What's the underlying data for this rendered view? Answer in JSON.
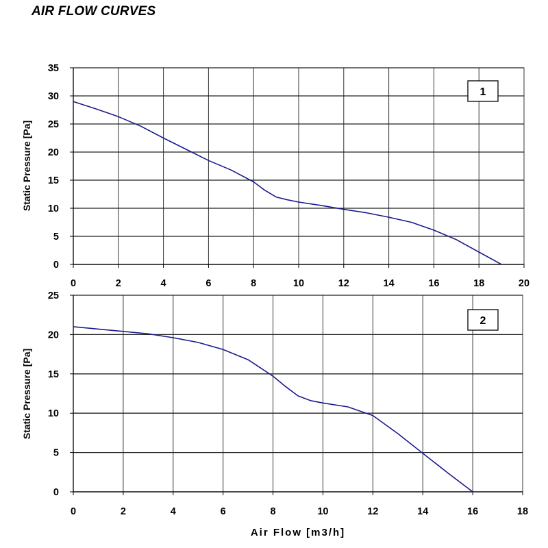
{
  "page": {
    "title": "AIR FLOW CURVES"
  },
  "colors": {
    "curve": "#1a1a8c",
    "grid": "#000000",
    "background": "#ffffff"
  },
  "chart_data": [
    {
      "type": "line",
      "badge": "1",
      "xlabel": "",
      "ylabel": "Static Pressure [Pa]",
      "xlim": [
        0,
        20
      ],
      "ylim": [
        0,
        35
      ],
      "x_ticks": [
        0,
        2,
        4,
        6,
        8,
        10,
        12,
        14,
        16,
        18,
        20
      ],
      "y_ticks": [
        0,
        5,
        10,
        15,
        20,
        25,
        30,
        35
      ],
      "grid": true,
      "series": [
        {
          "x": [
            0,
            1,
            2,
            3,
            4,
            5,
            6,
            7,
            8,
            8.5,
            9,
            9.5,
            10,
            11,
            12,
            13,
            14,
            15,
            16,
            17,
            18,
            19
          ],
          "y": [
            29,
            27.7,
            26.3,
            24.6,
            22.5,
            20.5,
            18.5,
            16.8,
            14.7,
            13.2,
            12,
            11.5,
            11.1,
            10.5,
            9.8,
            9.2,
            8.4,
            7.5,
            6.1,
            4.4,
            2.2,
            0
          ]
        }
      ]
    },
    {
      "type": "line",
      "badge": "2",
      "xlabel": "Air Flow [m3/h]",
      "ylabel": "Static Pressure [Pa]",
      "xlim": [
        0,
        18
      ],
      "ylim": [
        0,
        25
      ],
      "x_ticks": [
        0,
        2,
        4,
        6,
        8,
        10,
        12,
        14,
        16,
        18
      ],
      "y_ticks": [
        0,
        5,
        10,
        15,
        20,
        25
      ],
      "grid": true,
      "series": [
        {
          "x": [
            0,
            1,
            2,
            3,
            4,
            5,
            6,
            7,
            8,
            8.5,
            9,
            9.5,
            10,
            11,
            12,
            13,
            14,
            15,
            16
          ],
          "y": [
            21,
            20.7,
            20.4,
            20.1,
            19.6,
            19,
            18.1,
            16.8,
            14.7,
            13.4,
            12.2,
            11.6,
            11.3,
            10.8,
            9.7,
            7.4,
            4.9,
            2.4,
            0
          ]
        }
      ]
    }
  ]
}
